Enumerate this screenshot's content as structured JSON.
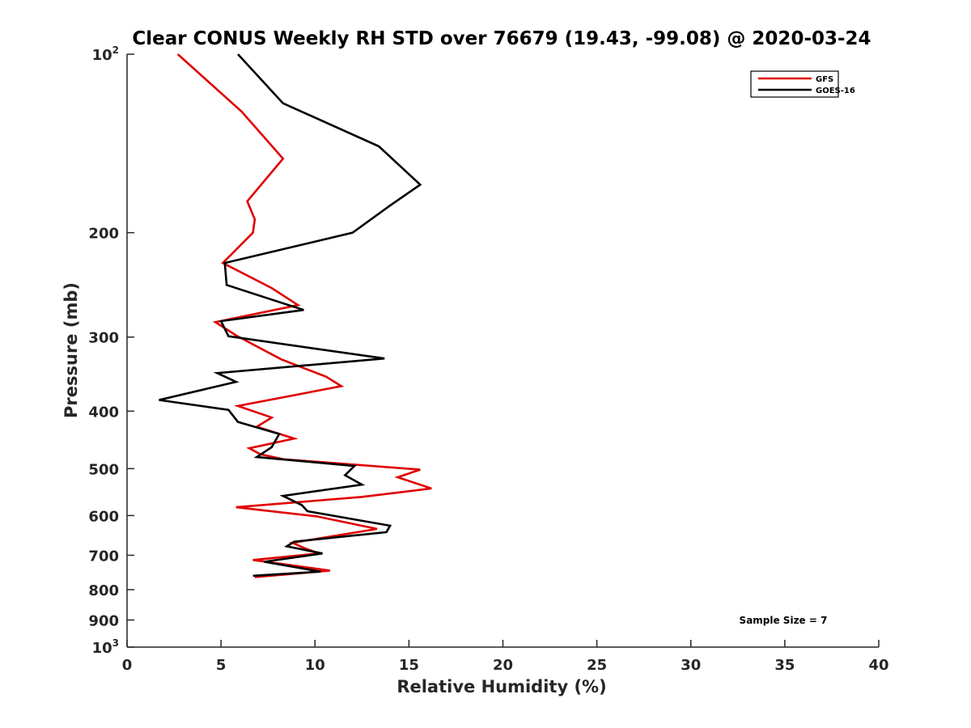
{
  "chart_data": {
    "type": "line",
    "title": "Clear CONUS Weekly RH STD over 76679 (19.43, -99.08) @ 2020-03-24",
    "xlabel": "Relative Humidity (%)",
    "ylabel": "Pressure (mb)",
    "xlim": [
      0,
      40
    ],
    "ylim": [
      1000,
      100
    ],
    "yscale": "log",
    "y_reversed": true,
    "x_ticks": [
      "0",
      "5",
      "10",
      "15",
      "20",
      "25",
      "30",
      "35",
      "40"
    ],
    "y_ticks": [
      {
        "value": 100,
        "base": "10",
        "exp": "2"
      },
      {
        "value": 200,
        "label": "200"
      },
      {
        "value": 300,
        "label": "300"
      },
      {
        "value": 400,
        "label": "400"
      },
      {
        "value": 500,
        "label": "500"
      },
      {
        "value": 600,
        "label": "600"
      },
      {
        "value": 700,
        "label": "700"
      },
      {
        "value": 800,
        "label": "800"
      },
      {
        "value": 900,
        "label": "900"
      },
      {
        "value": 1000,
        "base": "10",
        "exp": "3"
      }
    ],
    "grid": false,
    "legend_position": "top-right",
    "annotation": "Sample Size = 7",
    "series": [
      {
        "name": "GFS",
        "color": "#e00000",
        "points": [
          [
            2.7,
            100
          ],
          [
            6.1,
            125
          ],
          [
            8.3,
            150
          ],
          [
            6.4,
            177
          ],
          [
            6.8,
            190
          ],
          [
            6.7,
            200
          ],
          [
            5.1,
            225
          ],
          [
            7.7,
            248
          ],
          [
            9.1,
            265
          ],
          [
            4.7,
            283
          ],
          [
            5.8,
            298
          ],
          [
            8.2,
            327
          ],
          [
            10.6,
            350
          ],
          [
            11.4,
            363
          ],
          [
            5.9,
            392
          ],
          [
            7.7,
            410
          ],
          [
            6.9,
            425
          ],
          [
            8.9,
            445
          ],
          [
            6.5,
            462
          ],
          [
            7.1,
            473
          ],
          [
            8.3,
            482
          ],
          [
            15.6,
            502
          ],
          [
            14.4,
            517
          ],
          [
            16.2,
            540
          ],
          [
            12.5,
            558
          ],
          [
            5.8,
            581
          ],
          [
            10.1,
            602
          ],
          [
            13.3,
            632
          ],
          [
            8.8,
            667
          ],
          [
            9.4,
            680
          ],
          [
            10.2,
            695
          ],
          [
            6.7,
            713
          ],
          [
            10.8,
            743
          ],
          [
            6.8,
            762
          ]
        ]
      },
      {
        "name": "GOES-16",
        "color": "#000000",
        "points": [
          [
            5.9,
            100
          ],
          [
            8.3,
            121
          ],
          [
            13.4,
            143
          ],
          [
            15.6,
            166
          ],
          [
            14.0,
            180
          ],
          [
            12.0,
            200
          ],
          [
            5.2,
            225
          ],
          [
            5.3,
            245
          ],
          [
            9.4,
            270
          ],
          [
            5.0,
            282
          ],
          [
            5.4,
            299
          ],
          [
            13.7,
            326
          ],
          [
            4.8,
            345
          ],
          [
            5.8,
            357
          ],
          [
            1.7,
            383
          ],
          [
            5.4,
            398
          ],
          [
            5.9,
            417
          ],
          [
            8.1,
            437
          ],
          [
            7.7,
            460
          ],
          [
            6.9,
            478
          ],
          [
            12.1,
            495
          ],
          [
            11.6,
            513
          ],
          [
            12.5,
            532
          ],
          [
            8.3,
            556
          ],
          [
            9.3,
            576
          ],
          [
            9.6,
            590
          ],
          [
            14.0,
            624
          ],
          [
            13.8,
            640
          ],
          [
            8.9,
            664
          ],
          [
            8.5,
            676
          ],
          [
            10.4,
            695
          ],
          [
            7.3,
            718
          ],
          [
            10.3,
            746
          ],
          [
            6.7,
            758
          ]
        ]
      }
    ]
  }
}
